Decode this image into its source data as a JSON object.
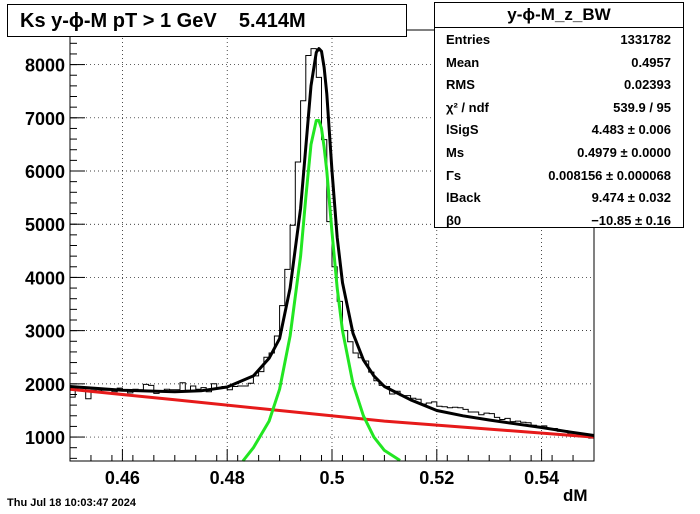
{
  "title": {
    "text": "Ks y-ϕ-M pT > 1 GeV    5.414M"
  },
  "stats": {
    "name": "y-ϕ-M_z_BW",
    "rows": [
      {
        "label": "Entries",
        "value": "1331782"
      },
      {
        "label": "Mean",
        "value": "0.4957"
      },
      {
        "label": "RMS",
        "value": "0.02393"
      },
      {
        "label": "χ² / ndf",
        "value": "539.9 / 95"
      },
      {
        "label": "lSigS",
        "value": "4.483 ± 0.006"
      },
      {
        "label": "Ms",
        "value": "0.4979 ± 0.0000"
      },
      {
        "label": "Γs",
        "value": "0.008156 ± 0.000068"
      },
      {
        "label": "lBack",
        "value": "9.474 ± 0.032"
      },
      {
        "label": "β0",
        "value": "−10.85 ± 0.16"
      }
    ]
  },
  "footer": {
    "date": "Thu Jul 18 10:03:47 2024"
  },
  "chart_data": {
    "type": "line",
    "xlabel": "dM",
    "ylabel": "",
    "xlim": [
      0.45,
      0.55
    ],
    "ylim": [
      550,
      8650
    ],
    "x_ticks": [
      {
        "value": 0.46,
        "label": "0.46"
      },
      {
        "value": 0.48,
        "label": "0.48"
      },
      {
        "value": 0.5,
        "label": "0.5"
      },
      {
        "value": 0.52,
        "label": "0.52"
      },
      {
        "value": 0.54,
        "label": "0.54"
      }
    ],
    "y_ticks": [
      {
        "value": 1000,
        "label": "1000"
      },
      {
        "value": 2000,
        "label": "2000"
      },
      {
        "value": 3000,
        "label": "3000"
      },
      {
        "value": 4000,
        "label": "4000"
      },
      {
        "value": 5000,
        "label": "5000"
      },
      {
        "value": 6000,
        "label": "6000"
      },
      {
        "value": 7000,
        "label": "7000"
      },
      {
        "value": 8000,
        "label": "8000"
      }
    ],
    "grid": true,
    "series": [
      {
        "kind": "histogram",
        "color": "#000000",
        "bins": 100,
        "x": [
          0.4505,
          0.4515,
          0.4525,
          0.4535,
          0.4545,
          0.4555,
          0.4565,
          0.4575,
          0.4585,
          0.4595,
          0.4605,
          0.4615,
          0.4625,
          0.4635,
          0.4645,
          0.4655,
          0.4665,
          0.4675,
          0.4685,
          0.4695,
          0.4705,
          0.4715,
          0.4725,
          0.4735,
          0.4745,
          0.4755,
          0.4765,
          0.4775,
          0.4785,
          0.4795,
          0.4805,
          0.4815,
          0.4825,
          0.4835,
          0.4845,
          0.4855,
          0.4865,
          0.4875,
          0.4885,
          0.4895,
          0.4905,
          0.4915,
          0.4925,
          0.4935,
          0.4945,
          0.4955,
          0.4965,
          0.4975,
          0.4985,
          0.4995,
          0.5005,
          0.5015,
          0.5025,
          0.5035,
          0.5045,
          0.5055,
          0.5065,
          0.5075,
          0.5085,
          0.5095,
          0.5105,
          0.5115,
          0.5125,
          0.5135,
          0.5145,
          0.5155,
          0.5165,
          0.5175,
          0.5185,
          0.5195,
          0.5205,
          0.5215,
          0.5225,
          0.5235,
          0.5245,
          0.5255,
          0.5265,
          0.5275,
          0.5285,
          0.5295,
          0.5305,
          0.5315,
          0.5325,
          0.5335,
          0.5345,
          0.5355,
          0.5365,
          0.5375,
          0.5385,
          0.5395,
          0.5405,
          0.5415,
          0.5425,
          0.5435,
          0.5445,
          0.5455,
          0.5465,
          0.5475,
          0.5485,
          0.5495
        ],
        "y": [
          1750,
          1950,
          1920,
          1720,
          1880,
          1870,
          1880,
          1880,
          1850,
          1920,
          1890,
          1830,
          1900,
          1890,
          1990,
          1970,
          1820,
          1850,
          1900,
          1890,
          1890,
          2020,
          1880,
          1960,
          1900,
          1930,
          1850,
          2000,
          1930,
          1950,
          1890,
          1950,
          1960,
          1960,
          2010,
          2150,
          2230,
          2500,
          2580,
          2900,
          3470,
          4150,
          4980,
          6170,
          7320,
          8170,
          8300,
          7760,
          6590,
          5050,
          4200,
          3550,
          3000,
          2790,
          2580,
          2490,
          2430,
          2220,
          2060,
          1970,
          1950,
          1810,
          1860,
          1780,
          1780,
          1730,
          1710,
          1620,
          1640,
          1660,
          1580,
          1570,
          1550,
          1560,
          1550,
          1520,
          1470,
          1470,
          1420,
          1450,
          1440,
          1370,
          1330,
          1350,
          1290,
          1300,
          1280,
          1270,
          1220,
          1200,
          1210,
          1160,
          1160,
          1110,
          1120,
          1070,
          1080,
          1050,
          1030,
          980
        ]
      },
      {
        "kind": "fit",
        "color": "#000000",
        "x": [
          0.45,
          0.46,
          0.47,
          0.475,
          0.48,
          0.485,
          0.488,
          0.49,
          0.492,
          0.494,
          0.495,
          0.496,
          0.497,
          0.4975,
          0.498,
          0.4985,
          0.499,
          0.5,
          0.501,
          0.502,
          0.504,
          0.506,
          0.508,
          0.51,
          0.515,
          0.52,
          0.525,
          0.53,
          0.535,
          0.54,
          0.545,
          0.55
        ],
        "y": [
          1950,
          1880,
          1850,
          1870,
          1940,
          2150,
          2480,
          2850,
          3800,
          5300,
          6450,
          7600,
          8230,
          8300,
          8250,
          7950,
          7450,
          6000,
          4750,
          3900,
          2950,
          2450,
          2150,
          1950,
          1700,
          1500,
          1400,
          1320,
          1250,
          1180,
          1100,
          1030
        ]
      },
      {
        "kind": "signal",
        "color": "#22e622",
        "x": [
          0.483,
          0.485,
          0.488,
          0.49,
          0.492,
          0.494,
          0.495,
          0.496,
          0.497,
          0.4975,
          0.498,
          0.4985,
          0.499,
          0.5,
          0.501,
          0.502,
          0.504,
          0.506,
          0.508,
          0.51,
          0.513
        ],
        "y": [
          550,
          800,
          1300,
          1900,
          2900,
          4400,
          5500,
          6500,
          6950,
          6950,
          6800,
          6450,
          6000,
          4850,
          3800,
          3000,
          2000,
          1400,
          1000,
          750,
          560
        ]
      },
      {
        "kind": "background",
        "color": "#e61a1a",
        "x": [
          0.45,
          0.47,
          0.49,
          0.51,
          0.53,
          0.55
        ],
        "y": [
          1900,
          1700,
          1500,
          1300,
          1150,
          1000
        ]
      }
    ]
  }
}
